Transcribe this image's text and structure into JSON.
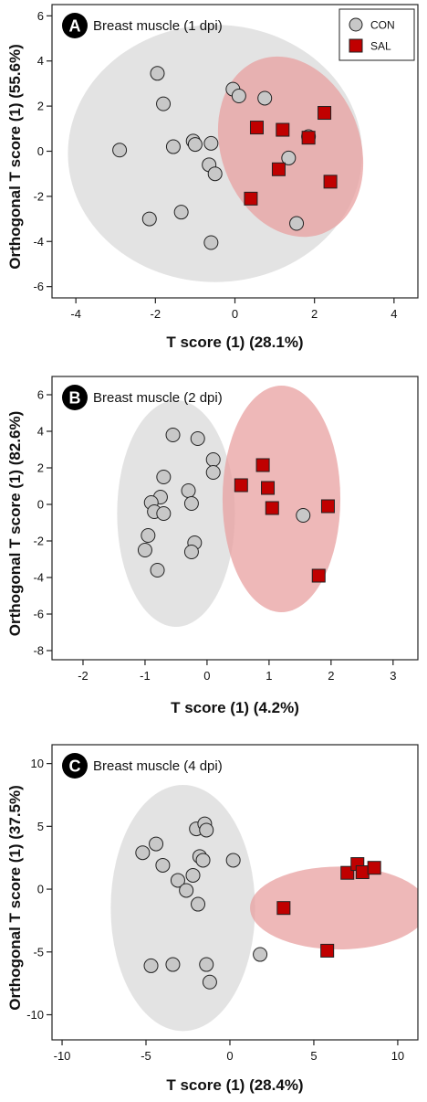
{
  "chart_data": [
    {
      "type": "scatter",
      "panel_label": "A",
      "subtitle": "Breast muscle (1 dpi)",
      "xlabel": "T score (1) (28.1%)",
      "ylabel": "Orthogonal T score (1) (55.6%)",
      "xlim": [
        -4.6,
        4.6
      ],
      "ylim": [
        -6.5,
        6.5
      ],
      "xticks": [
        -4,
        -2,
        0,
        2,
        4
      ],
      "yticks": [
        -6,
        -4,
        -2,
        0,
        2,
        4,
        6
      ],
      "legend": {
        "position": "top-right",
        "entries": [
          "CON",
          "SAL"
        ]
      },
      "series": [
        {
          "name": "CON",
          "marker": "circle",
          "color": "#c8c8c8",
          "points": [
            [
              -2.9,
              0.05
            ],
            [
              -1.95,
              3.45
            ],
            [
              -1.8,
              2.1
            ],
            [
              -1.55,
              0.2
            ],
            [
              -1.05,
              0.45
            ],
            [
              -1.0,
              0.3
            ],
            [
              -0.6,
              0.35
            ],
            [
              -0.65,
              -0.6
            ],
            [
              -0.5,
              -1.0
            ],
            [
              -0.05,
              2.75
            ],
            [
              0.1,
              2.45
            ],
            [
              0.75,
              2.35
            ],
            [
              -2.15,
              -3.0
            ],
            [
              -1.35,
              -2.7
            ],
            [
              -0.6,
              -4.05
            ],
            [
              1.35,
              -0.3
            ],
            [
              1.85,
              0.65
            ],
            [
              1.55,
              -3.2
            ]
          ]
        },
        {
          "name": "SAL",
          "marker": "square",
          "color": "#c00000",
          "points": [
            [
              0.55,
              1.05
            ],
            [
              1.2,
              0.95
            ],
            [
              1.85,
              0.6
            ],
            [
              2.25,
              1.7
            ],
            [
              1.1,
              -0.8
            ],
            [
              2.4,
              -1.35
            ],
            [
              0.4,
              -2.1
            ]
          ]
        }
      ],
      "ellipses": [
        {
          "group": "CON",
          "color": "#dedede",
          "cx": -0.5,
          "cy": -0.1,
          "rx": 3.7,
          "ry": 5.7,
          "angle_deg": 0
        },
        {
          "group": "SAL",
          "color": "#e8a0a0",
          "cx": 1.4,
          "cy": 0.2,
          "rx": 1.75,
          "ry": 4.1,
          "angle_deg": -20
        }
      ]
    },
    {
      "type": "scatter",
      "panel_label": "B",
      "subtitle": "Breast muscle (2 dpi)",
      "xlabel": "T score (1) (4.2%)",
      "ylabel": "Orthogonal T score (1) (82.6%)",
      "xlim": [
        -2.5,
        3.4
      ],
      "ylim": [
        -8.5,
        7
      ],
      "xticks": [
        -2,
        -1,
        0,
        1,
        2,
        3
      ],
      "yticks": [
        -8,
        -6,
        -4,
        -2,
        0,
        2,
        4,
        6
      ],
      "series": [
        {
          "name": "CON",
          "marker": "circle",
          "color": "#c8c8c8",
          "points": [
            [
              -0.55,
              3.8
            ],
            [
              -0.15,
              3.6
            ],
            [
              0.1,
              2.45
            ],
            [
              0.1,
              1.75
            ],
            [
              -0.7,
              1.5
            ],
            [
              -0.3,
              0.75
            ],
            [
              -0.75,
              0.4
            ],
            [
              -0.9,
              0.1
            ],
            [
              -0.85,
              -0.4
            ],
            [
              -0.7,
              -0.5
            ],
            [
              -0.25,
              0.05
            ],
            [
              -0.95,
              -1.7
            ],
            [
              -1.0,
              -2.5
            ],
            [
              -0.2,
              -2.1
            ],
            [
              -0.25,
              -2.6
            ],
            [
              -0.8,
              -3.6
            ],
            [
              1.55,
              -0.6
            ]
          ]
        },
        {
          "name": "SAL",
          "marker": "square",
          "color": "#c00000",
          "points": [
            [
              0.55,
              1.05
            ],
            [
              0.9,
              2.15
            ],
            [
              0.98,
              0.9
            ],
            [
              1.05,
              -0.2
            ],
            [
              1.95,
              -0.1
            ],
            [
              1.8,
              -3.9
            ]
          ]
        }
      ],
      "ellipses": [
        {
          "group": "CON",
          "color": "#dedede",
          "cx": -0.5,
          "cy": -0.5,
          "rx": 0.95,
          "ry": 6.2,
          "angle_deg": 0
        },
        {
          "group": "SAL",
          "color": "#e8a0a0",
          "cx": 1.2,
          "cy": 0.3,
          "rx": 0.95,
          "ry": 6.2,
          "angle_deg": 0
        }
      ]
    },
    {
      "type": "scatter",
      "panel_label": "C",
      "subtitle": "Breast muscle (4 dpi)",
      "xlabel": "T score (1) (28.4%)",
      "ylabel": "Orthogonal T score (1) (37.5%)",
      "xlim": [
        -10.6,
        11.2
      ],
      "ylim": [
        -12,
        11.5
      ],
      "xticks": [
        -10,
        -5,
        0,
        5,
        10
      ],
      "yticks": [
        -10,
        -5,
        0,
        5,
        10
      ],
      "series": [
        {
          "name": "CON",
          "marker": "circle",
          "color": "#c8c8c8",
          "points": [
            [
              -5.2,
              2.9
            ],
            [
              -4.4,
              3.6
            ],
            [
              -4.0,
              1.9
            ],
            [
              -3.1,
              0.7
            ],
            [
              -2.6,
              -0.1
            ],
            [
              -2.2,
              1.1
            ],
            [
              -2.0,
              4.8
            ],
            [
              -1.5,
              5.2
            ],
            [
              -1.4,
              4.7
            ],
            [
              -1.8,
              2.6
            ],
            [
              -1.6,
              2.3
            ],
            [
              0.2,
              2.3
            ],
            [
              -1.9,
              -1.2
            ],
            [
              -4.7,
              -6.1
            ],
            [
              -3.4,
              -6.0
            ],
            [
              -1.4,
              -6.0
            ],
            [
              -1.2,
              -7.4
            ],
            [
              1.8,
              -5.2
            ]
          ]
        },
        {
          "name": "SAL",
          "marker": "square",
          "color": "#c00000",
          "points": [
            [
              7.0,
              1.3
            ],
            [
              7.6,
              2.0
            ],
            [
              7.9,
              1.35
            ],
            [
              8.6,
              1.7
            ],
            [
              3.2,
              -1.5
            ],
            [
              5.8,
              -4.9
            ]
          ]
        }
      ],
      "ellipses": [
        {
          "group": "CON",
          "color": "#dedede",
          "cx": -2.8,
          "cy": -1.5,
          "rx": 4.3,
          "ry": 9.8,
          "angle_deg": 0
        },
        {
          "group": "SAL",
          "color": "#e8a0a0",
          "cx": 6.5,
          "cy": -1.5,
          "rx": 5.3,
          "ry": 3.3,
          "angle_deg": 0
        }
      ]
    }
  ]
}
